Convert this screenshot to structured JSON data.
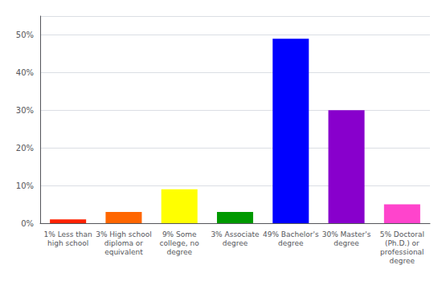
{
  "chart_data": {
    "type": "bar",
    "categories": [
      "1% Less than\nhigh school",
      "3% High school\ndiploma or\nequivalent",
      "9% Some\ncollege, no\ndegree",
      "3% Associate\ndegree",
      "49% Bachelor's\ndegree",
      "30% Master's\ndegree",
      "5% Doctoral\n(Ph.D.) or\nprofessional\ndegree"
    ],
    "values": [
      1,
      3,
      9,
      3,
      49,
      30,
      5
    ],
    "colors": [
      "#ff2200",
      "#ff6600",
      "#ffff00",
      "#009900",
      "#0000ff",
      "#8800cc",
      "#ff44cc"
    ],
    "ylim": [
      0,
      55
    ],
    "yticks": [
      {
        "value": 0,
        "label": "0%"
      },
      {
        "value": 10,
        "label": "10%"
      },
      {
        "value": 20,
        "label": "20%"
      },
      {
        "value": 30,
        "label": "30%"
      },
      {
        "value": 40,
        "label": "40%"
      },
      {
        "value": 50,
        "label": "50%"
      }
    ],
    "grid": true
  }
}
